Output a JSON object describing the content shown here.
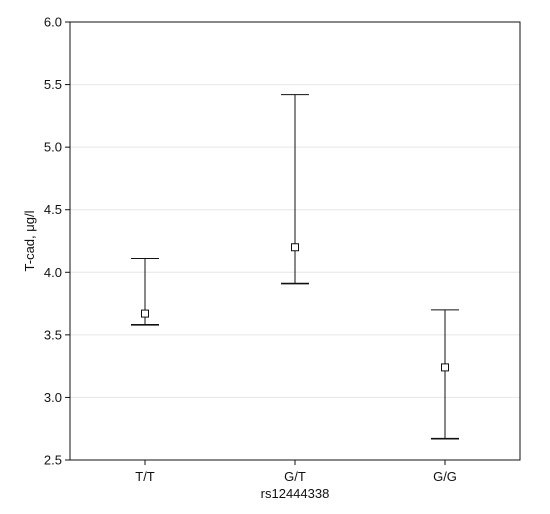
{
  "chart_data": {
    "type": "errorbar",
    "title": "",
    "xlabel": "rs12444338",
    "ylabel": "T-cad, μg/l",
    "ylim": [
      2.5,
      6.0
    ],
    "yticks": [
      "2.5",
      "3.0",
      "3.5",
      "4.0",
      "4.5",
      "5.0",
      "5.5",
      "6.0"
    ],
    "categories": [
      "T/T",
      "G/T",
      "G/G"
    ],
    "series": [
      {
        "mean": [
          3.67,
          4.2,
          3.24
        ],
        "upper": [
          4.11,
          5.42,
          3.7
        ],
        "lower": [
          3.58,
          3.91,
          2.67
        ]
      }
    ],
    "grid": true,
    "colors": {
      "line": "#111111",
      "grid": "#e6e6e6"
    }
  }
}
